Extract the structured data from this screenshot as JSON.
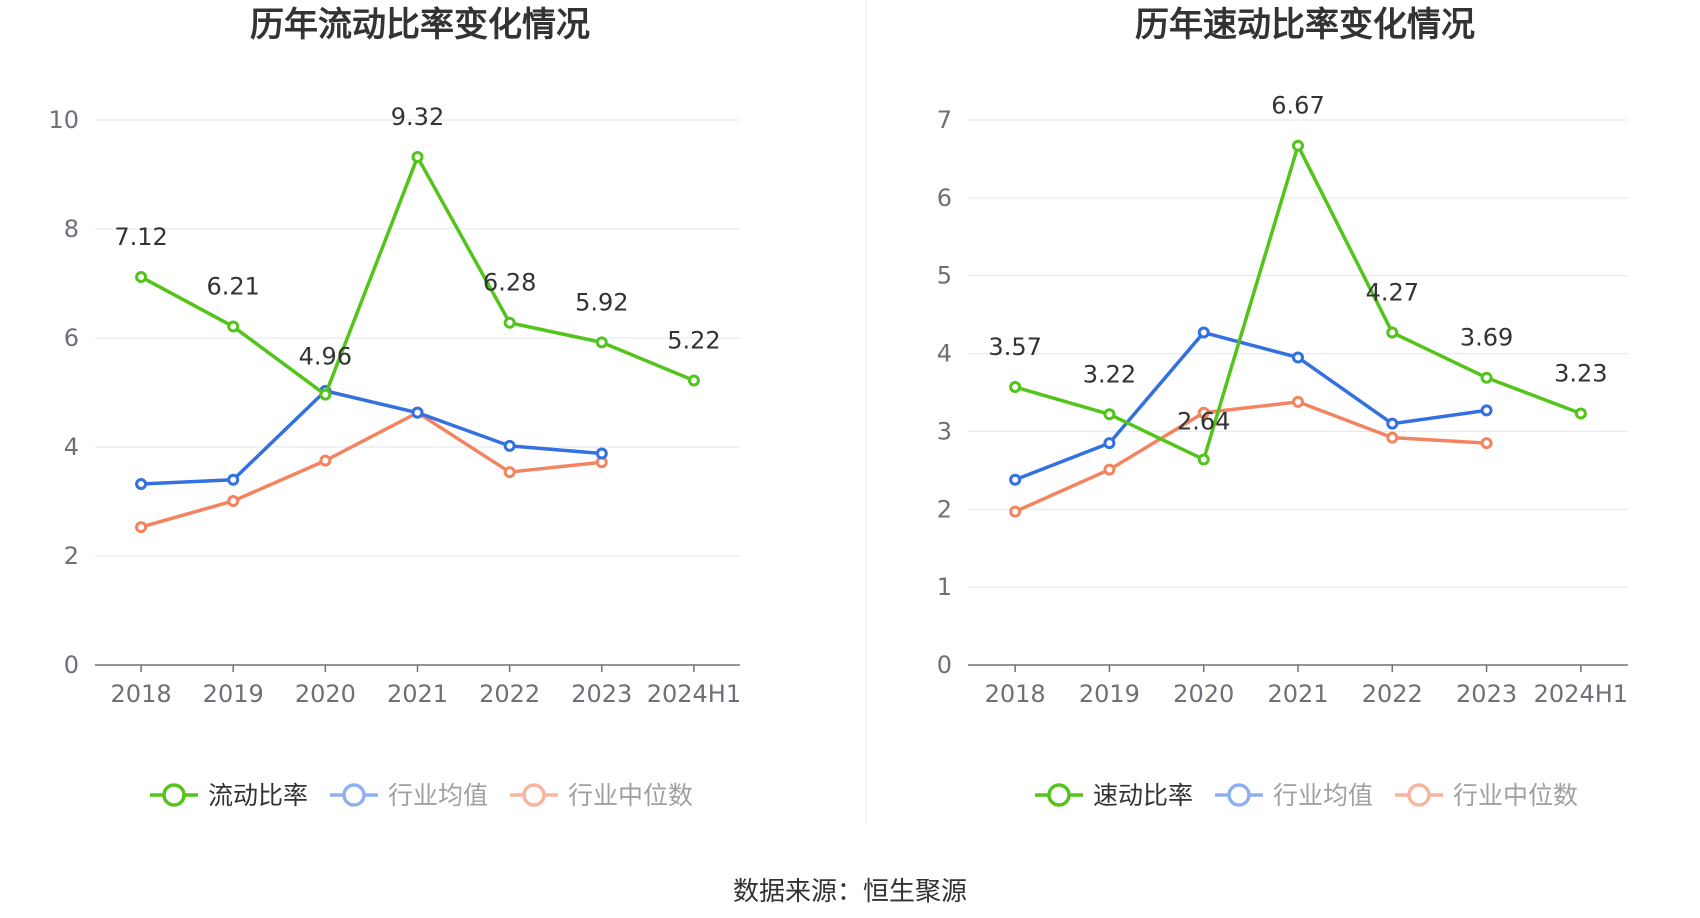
{
  "chart_data": [
    {
      "type": "line",
      "title": "历年流动比率变化情况",
      "categories": [
        "2018",
        "2019",
        "2020",
        "2021",
        "2022",
        "2023",
        "2024H1"
      ],
      "ylim": [
        0,
        10
      ],
      "yticks": [
        0,
        2,
        4,
        6,
        8,
        10
      ],
      "series": [
        {
          "name": "流动比率",
          "color": "#52c41a",
          "labelled": true,
          "values": [
            7.12,
            6.21,
            4.96,
            9.32,
            6.28,
            5.92,
            5.22
          ],
          "labels": [
            "7.12",
            "6.21",
            "4.96",
            "9.32",
            "6.28",
            "5.92",
            "5.22"
          ]
        },
        {
          "name": "行业均值",
          "color": "#3370e0",
          "labelled": false,
          "values": [
            3.32,
            3.4,
            5.03,
            4.63,
            4.02,
            3.88,
            null
          ]
        },
        {
          "name": "行业中位数",
          "color": "#f4845f",
          "labelled": false,
          "values": [
            2.53,
            3.01,
            3.75,
            4.63,
            3.54,
            3.72,
            null
          ]
        }
      ]
    },
    {
      "type": "line",
      "title": "历年速动比率变化情况",
      "categories": [
        "2018",
        "2019",
        "2020",
        "2021",
        "2022",
        "2023",
        "2024H1"
      ],
      "ylim": [
        0,
        7
      ],
      "yticks": [
        0,
        1,
        2,
        3,
        4,
        5,
        6,
        7
      ],
      "series": [
        {
          "name": "速动比率",
          "color": "#52c41a",
          "labelled": true,
          "values": [
            3.57,
            3.22,
            2.64,
            6.67,
            4.27,
            3.69,
            3.23
          ],
          "labels": [
            "3.57",
            "3.22",
            "2.64",
            "6.67",
            "4.27",
            "3.69",
            "3.23"
          ]
        },
        {
          "name": "行业均值",
          "color": "#3370e0",
          "labelled": false,
          "values": [
            2.38,
            2.85,
            4.27,
            3.95,
            3.1,
            3.27,
            null
          ]
        },
        {
          "name": "行业中位数",
          "color": "#f4845f",
          "labelled": false,
          "values": [
            1.97,
            2.51,
            3.24,
            3.38,
            2.92,
            2.85,
            null
          ]
        }
      ]
    }
  ],
  "source_text": "数据来源：恒生聚源"
}
